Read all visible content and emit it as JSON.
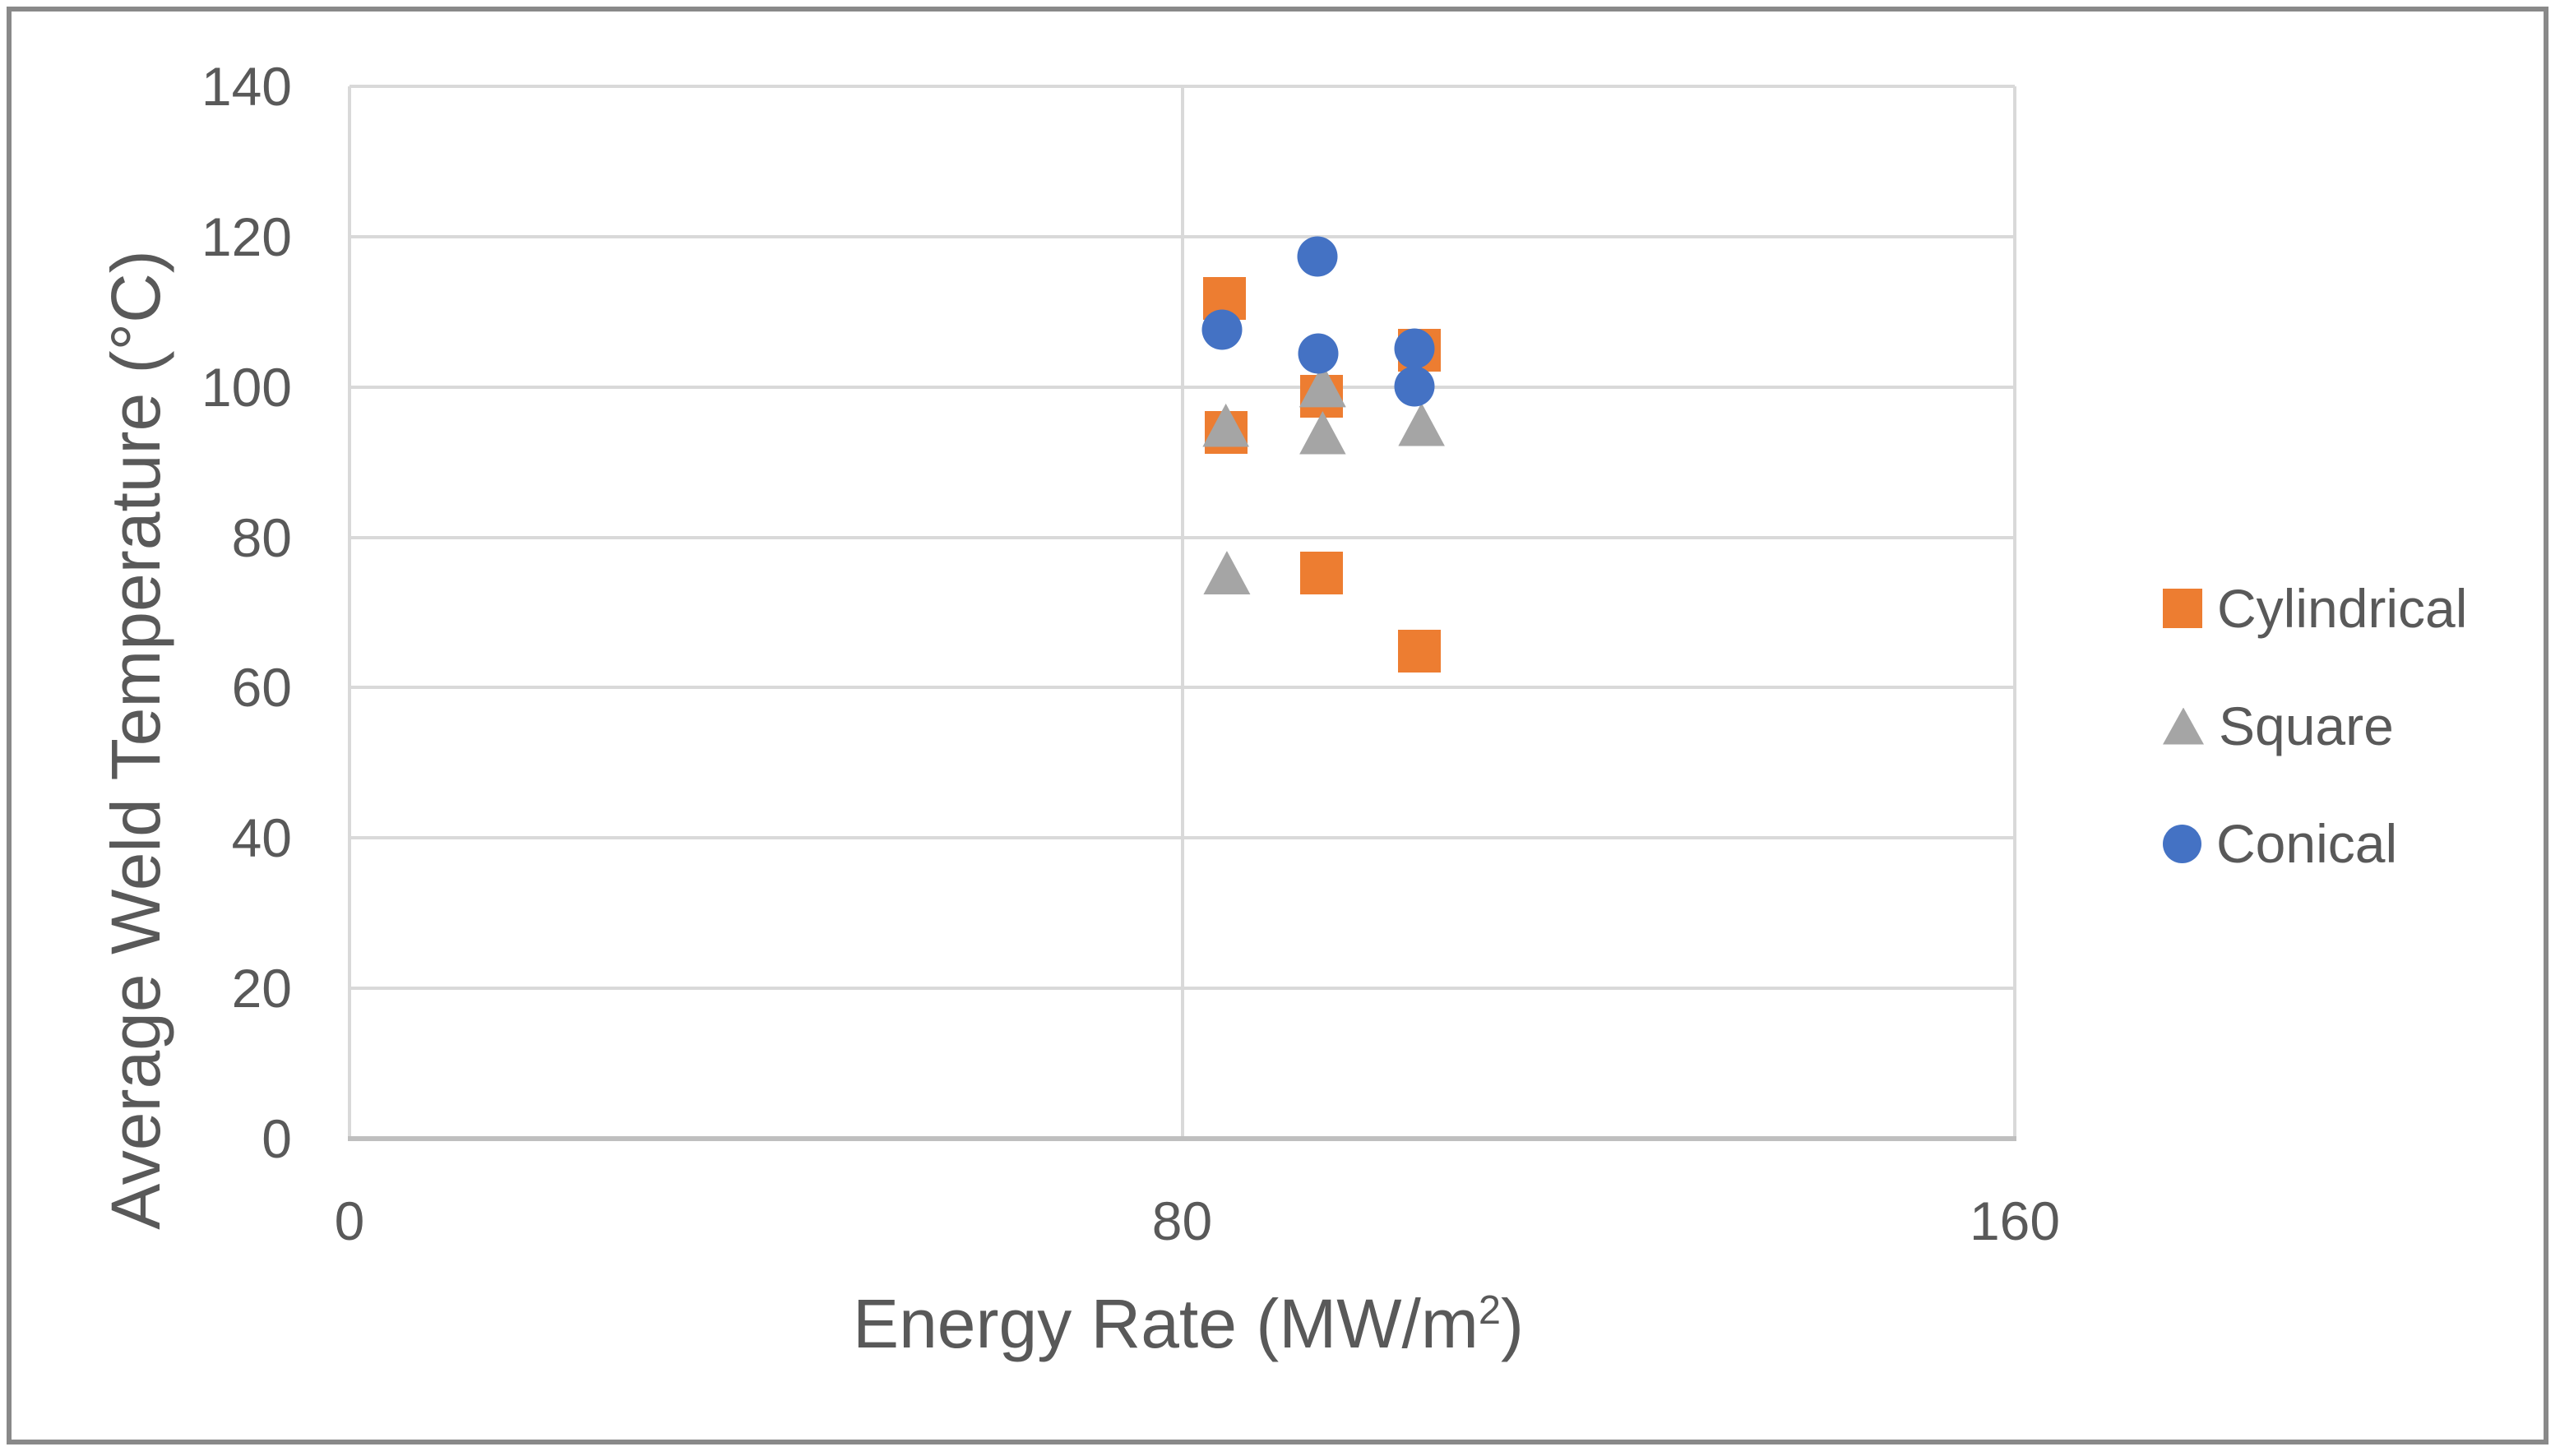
{
  "figure": {
    "background_color": "#FFFFFF",
    "border_color": "#898989",
    "text_color": "#595959",
    "gridline_color": "#D9D9D9",
    "axis_line_color": "#BFBFBF"
  },
  "chart_data": {
    "type": "scatter",
    "title": "",
    "xlabel_main": "Energy Rate (MW/m",
    "xlabel_sup": "2",
    "xlabel_close": ")",
    "ylabel": "Average Weld Temperature (°C)",
    "xlim": [
      0,
      160
    ],
    "ylim": [
      0,
      140
    ],
    "x_ticks": [
      0,
      80,
      160
    ],
    "y_ticks": [
      0,
      20,
      40,
      60,
      80,
      100,
      120,
      140
    ],
    "grid": true,
    "legend_position": "right",
    "series": [
      {
        "name": "Cylindrical",
        "marker": "square",
        "color": "#ED7D31",
        "points": [
          {
            "x": 84.1,
            "y": 111.8
          },
          {
            "x": 84.2,
            "y": 93.9
          },
          {
            "x": 93.4,
            "y": 98.8
          },
          {
            "x": 93.4,
            "y": 75.3
          },
          {
            "x": 102.8,
            "y": 104.9
          },
          {
            "x": 102.8,
            "y": 64.9
          }
        ]
      },
      {
        "name": "Square",
        "marker": "triangle",
        "color": "#A5A5A5",
        "points": [
          {
            "x": 84.2,
            "y": 94.9
          },
          {
            "x": 84.3,
            "y": 75.3
          },
          {
            "x": 93.5,
            "y": 100.2
          },
          {
            "x": 93.5,
            "y": 93.9
          },
          {
            "x": 103.0,
            "y": 95.0
          }
        ]
      },
      {
        "name": "Conical",
        "marker": "circle",
        "color": "#4472C4",
        "points": [
          {
            "x": 83.8,
            "y": 107.6
          },
          {
            "x": 93.0,
            "y": 117.4
          },
          {
            "x": 93.1,
            "y": 104.5
          },
          {
            "x": 102.3,
            "y": 105.1
          },
          {
            "x": 102.3,
            "y": 100.1
          }
        ]
      }
    ]
  }
}
